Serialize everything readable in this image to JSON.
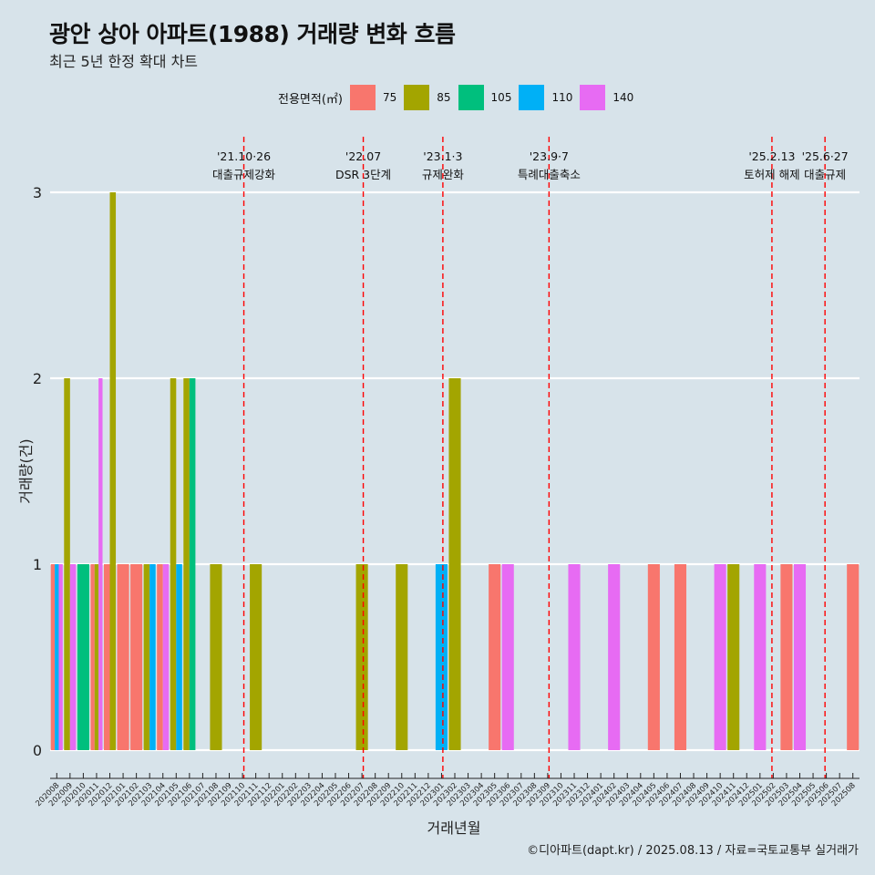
{
  "header": {
    "title": "광안 상아 아파트(1988) 거래량 변화 흐름",
    "subtitle": "최근 5년 한정 확대 차트"
  },
  "legend": {
    "title": "전용면적(㎡)",
    "items": [
      {
        "label": "75",
        "color": "#f8766d"
      },
      {
        "label": "85",
        "color": "#a3a500"
      },
      {
        "label": "105",
        "color": "#00bf7d"
      },
      {
        "label": "110",
        "color": "#00b0f6"
      },
      {
        "label": "140",
        "color": "#e76bf3"
      }
    ]
  },
  "caption": "©디아파트(dapt.kr) / 2025.08.13 / 자료=국토교통부 실거래가",
  "chart_data": {
    "type": "bar",
    "xlabel": "거래년월",
    "ylabel": "거래량(건)",
    "ylim": [
      0,
      3
    ],
    "yticks": [
      0,
      1,
      2,
      3
    ],
    "grid": true,
    "categories": [
      "202008",
      "202009",
      "202010",
      "202011",
      "202012",
      "202101",
      "202102",
      "202103",
      "202104",
      "202105",
      "202106",
      "202107",
      "202108",
      "202109",
      "202110",
      "202111",
      "202112",
      "202201",
      "202202",
      "202203",
      "202204",
      "202205",
      "202206",
      "202207",
      "202208",
      "202209",
      "202210",
      "202211",
      "202212",
      "202301",
      "202302",
      "202303",
      "202304",
      "202305",
      "202306",
      "202307",
      "202308",
      "202309",
      "202310",
      "202311",
      "202312",
      "202401",
      "202402",
      "202403",
      "202404",
      "202405",
      "202406",
      "202407",
      "202408",
      "202409",
      "202410",
      "202411",
      "202412",
      "202501",
      "202502",
      "202503",
      "202504",
      "202505",
      "202506",
      "202507",
      "202508"
    ],
    "series": [
      {
        "name": "75",
        "color": "#f8766d",
        "values": {
          "202008": 1,
          "202011": 1,
          "202012": 1,
          "202101": 1,
          "202102": 1,
          "202104": 1,
          "202305": 1,
          "202405": 1,
          "202407": 1,
          "202503": 1,
          "202508": 1
        }
      },
      {
        "name": "85",
        "color": "#a3a500",
        "values": {
          "202009": 2,
          "202011": 1,
          "202012": 3,
          "202103": 1,
          "202105": 2,
          "202106": 2,
          "202108": 1,
          "202111": 1,
          "202207": 1,
          "202210": 1,
          "202302": 2,
          "202411": 1
        }
      },
      {
        "name": "105",
        "color": "#00bf7d",
        "values": {
          "202010": 1,
          "202106": 2
        }
      },
      {
        "name": "110",
        "color": "#00b0f6",
        "values": {
          "202008": 1,
          "202103": 1,
          "202105": 1,
          "202301": 1
        }
      },
      {
        "name": "140",
        "color": "#e76bf3",
        "values": {
          "202008": 1,
          "202009": 1,
          "202011": 2,
          "202104": 1,
          "202306": 1,
          "202311": 1,
          "202402": 1,
          "202410": 1,
          "202501": 1,
          "202504": 1
        }
      }
    ],
    "events": [
      {
        "date": "'21.10·26",
        "label": "대출규제강화",
        "pos": 14.6
      },
      {
        "date": "'22.07",
        "label": "DSR 3단계",
        "pos": 23.6
      },
      {
        "date": "'23.1·3",
        "label": "규제완화",
        "pos": 29.6
      },
      {
        "date": "'23.9·7",
        "label": "특례대출축소",
        "pos": 37.6
      },
      {
        "date": "'25.2.13",
        "label": "토허제 해제",
        "pos": 54.4
      },
      {
        "date": "'25.6·27",
        "label": "대출규제",
        "pos": 58.4
      }
    ]
  }
}
